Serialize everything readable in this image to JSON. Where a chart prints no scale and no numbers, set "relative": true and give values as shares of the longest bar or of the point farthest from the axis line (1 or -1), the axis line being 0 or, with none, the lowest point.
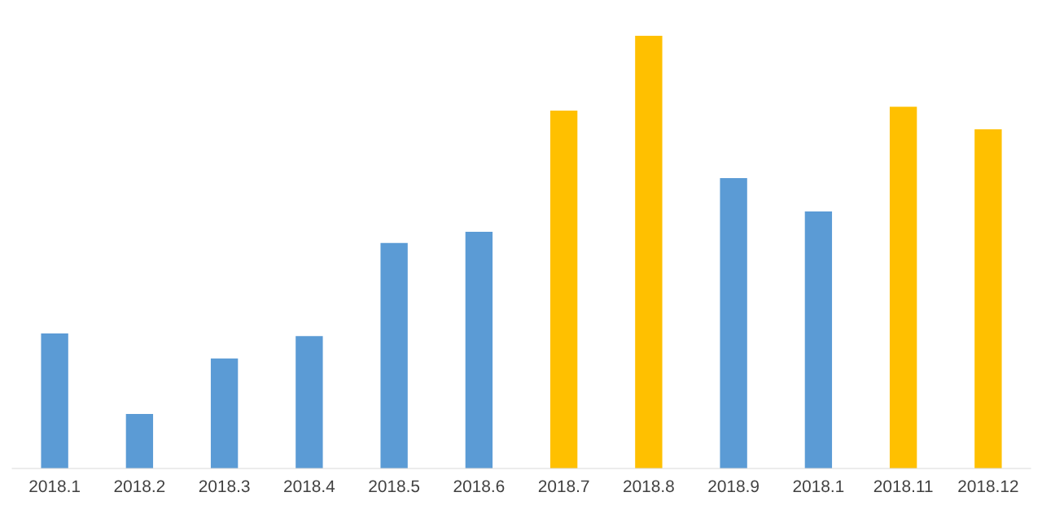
{
  "chart_data": {
    "type": "bar",
    "relative": true,
    "categories": [
      "2018.1",
      "2018.2",
      "2018.3",
      "2018.4",
      "2018.5",
      "2018.6",
      "2018.7",
      "2018.8",
      "2018.9",
      "2018.1",
      "2018.11",
      "2018.12"
    ],
    "values": [
      0.312,
      0.126,
      0.254,
      0.306,
      0.521,
      0.547,
      0.827,
      1,
      0.671,
      0.594,
      0.836,
      0.784
    ],
    "colors": [
      "#5b9bd5",
      "#5b9bd5",
      "#5b9bd5",
      "#5b9bd5",
      "#5b9bd5",
      "#5b9bd5",
      "#ffc000",
      "#ffc000",
      "#5b9bd5",
      "#5b9bd5",
      "#ffc000",
      "#ffc000"
    ],
    "legend": false
  }
}
